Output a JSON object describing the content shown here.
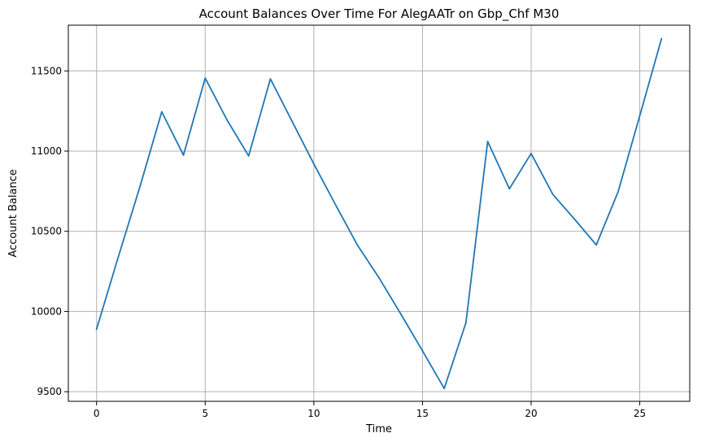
{
  "chart_data": {
    "type": "line",
    "title": "Account Balances Over Time For AlegAATr on Gbp_Chf M30",
    "xlabel": "Time",
    "ylabel": "Account Balance",
    "xlim": [
      -1.3,
      27.3
    ],
    "ylim": [
      9440,
      11785
    ],
    "xticks": [
      0,
      5,
      10,
      15,
      20,
      25
    ],
    "yticks": [
      9500,
      10000,
      10500,
      11000,
      11500
    ],
    "xtick_labels": [
      "0",
      "5",
      "10",
      "15",
      "20",
      "25"
    ],
    "ytick_labels": [
      "9500",
      "10000",
      "10500",
      "11000",
      "11500"
    ],
    "grid": true,
    "series": [
      {
        "color": "#1f77b4",
        "x": [
          0,
          1,
          2,
          3,
          4,
          5,
          6,
          7,
          8,
          9,
          10,
          11,
          12,
          13,
          14,
          15,
          16,
          17,
          18,
          19,
          20,
          21,
          22,
          23,
          24,
          25,
          26
        ],
        "y": [
          9890,
          10340,
          10780,
          11245,
          10975,
          11455,
          11195,
          10970,
          11450,
          11185,
          10920,
          10665,
          10415,
          10210,
          9985,
          9755,
          9520,
          9930,
          11060,
          10765,
          10985,
          10730,
          10575,
          10415,
          10745,
          11220,
          11700
        ]
      }
    ]
  }
}
